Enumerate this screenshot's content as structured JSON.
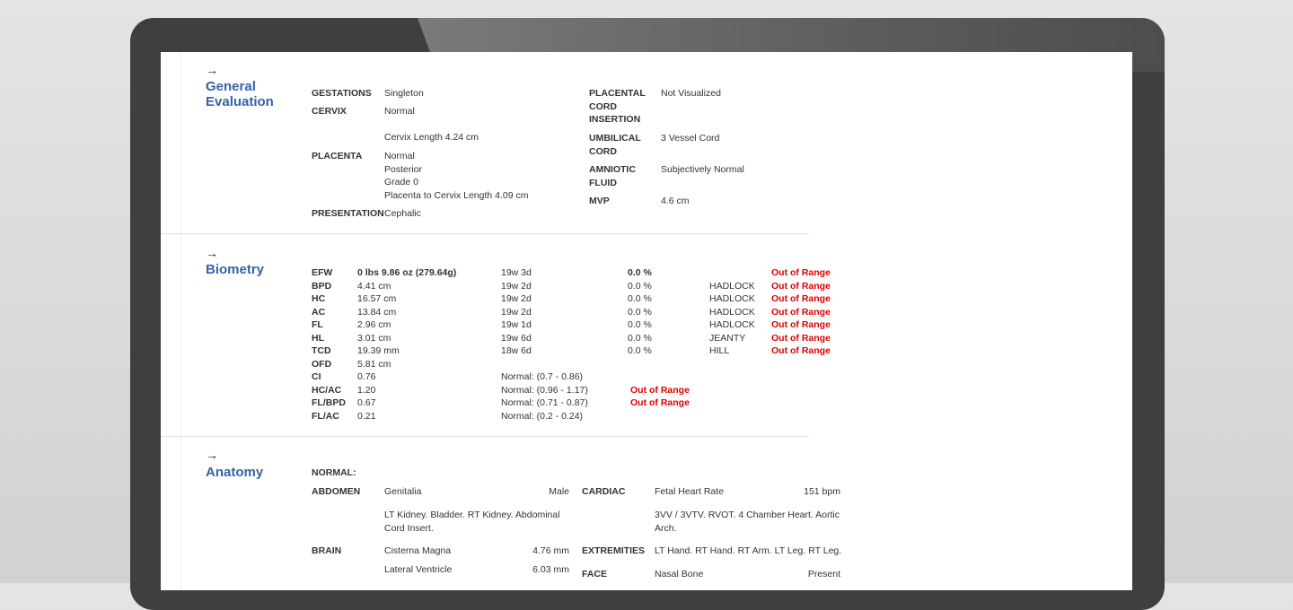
{
  "general": {
    "title": "General Evaluation",
    "left": [
      {
        "label": "GESTATIONS",
        "values": [
          "Singleton"
        ]
      },
      {
        "label": "CERVIX",
        "values": [
          "Normal"
        ]
      },
      {
        "label": "",
        "values": [
          "Cervix Length 4.24 cm"
        ]
      },
      {
        "label": "PLACENTA",
        "values": [
          "Normal",
          "Posterior",
          "Grade 0",
          "Placenta to Cervix Length 4.09 cm"
        ]
      },
      {
        "label": "PRESENTATION",
        "values": [
          "Cephalic"
        ]
      }
    ],
    "right": [
      {
        "label": "PLACENTAL CORD INSERTION",
        "value": "Not Visualized"
      },
      {
        "label": "UMBILICAL CORD",
        "value": "3 Vessel Cord"
      },
      {
        "label": "AMNIOTIC FLUID",
        "value": "Subjectively Normal"
      },
      {
        "label": "MVP",
        "value": "4.6 cm"
      }
    ]
  },
  "biometry": {
    "title": "Biometry",
    "rows": [
      {
        "label": "EFW",
        "value": "0 lbs 9.86 oz (279.64g)",
        "ga": "19w 3d",
        "pct": "0.0 %",
        "method": "",
        "status": "Out of Range"
      },
      {
        "label": "BPD",
        "value": "4.41 cm",
        "ga": "19w 2d",
        "pct": "0.0 %",
        "method": "HADLOCK",
        "status": "Out of Range"
      },
      {
        "label": "HC",
        "value": "16.57 cm",
        "ga": "19w 2d",
        "pct": "0.0 %",
        "method": "HADLOCK",
        "status": "Out of Range"
      },
      {
        "label": "AC",
        "value": "13.84 cm",
        "ga": "19w 2d",
        "pct": "0.0 %",
        "method": "HADLOCK",
        "status": "Out of Range"
      },
      {
        "label": "FL",
        "value": "2.96 cm",
        "ga": "19w 1d",
        "pct": "0.0 %",
        "method": "HADLOCK",
        "status": "Out of Range"
      },
      {
        "label": "HL",
        "value": "3.01 cm",
        "ga": "19w 6d",
        "pct": "0.0 %",
        "method": "JEANTY",
        "status": "Out of Range"
      },
      {
        "label": "TCD",
        "value": "19.39 mm",
        "ga": "18w 6d",
        "pct": "0.0 %",
        "method": "HILL",
        "status": "Out of Range"
      },
      {
        "label": "OFD",
        "value": "5.81 cm",
        "ga": "",
        "pct": "",
        "method": "",
        "status": ""
      }
    ],
    "ratios": [
      {
        "label": "CI",
        "value": "0.76",
        "normal": "Normal: (0.7 - 0.86)",
        "status": ""
      },
      {
        "label": "HC/AC",
        "value": "1.20",
        "normal": "Normal: (0.96 - 1.17)",
        "status": "Out of Range"
      },
      {
        "label": "FL/BPD",
        "value": "0.67",
        "normal": "Normal: (0.71 - 0.87)",
        "status": "Out of Range"
      },
      {
        "label": "FL/AC",
        "value": "0.21",
        "normal": "Normal: (0.2 - 0.24)",
        "status": ""
      }
    ]
  },
  "anatomy": {
    "title": "Anatomy",
    "normal_label": "NORMAL:",
    "abdomen": {
      "label": "ABDOMEN",
      "item": "Genitalia",
      "item_value": "Male",
      "list": "LT Kidney. Bladder. RT Kidney. Abdominal Cord Insert."
    },
    "brain": {
      "label": "BRAIN",
      "items": [
        {
          "name": "Cisterna Magna",
          "value": "4.76 mm"
        },
        {
          "name": "Lateral Ventricle",
          "value": "6.03 mm"
        }
      ]
    },
    "cardiac": {
      "label": "CARDIAC",
      "item": "Fetal Heart Rate",
      "item_value": "151 bpm",
      "list": "3VV / 3VTV. RVOT. 4 Chamber Heart. Aortic Arch."
    },
    "extremities": {
      "label": "EXTREMITIES",
      "list": "LT Hand. RT Hand. RT Arm. LT Leg. RT Leg."
    },
    "face": {
      "label": "FACE",
      "item": "Nasal Bone",
      "item_value": "Present"
    }
  },
  "colors": {
    "heading": "#3563a8",
    "out_of_range": "#e00000"
  }
}
